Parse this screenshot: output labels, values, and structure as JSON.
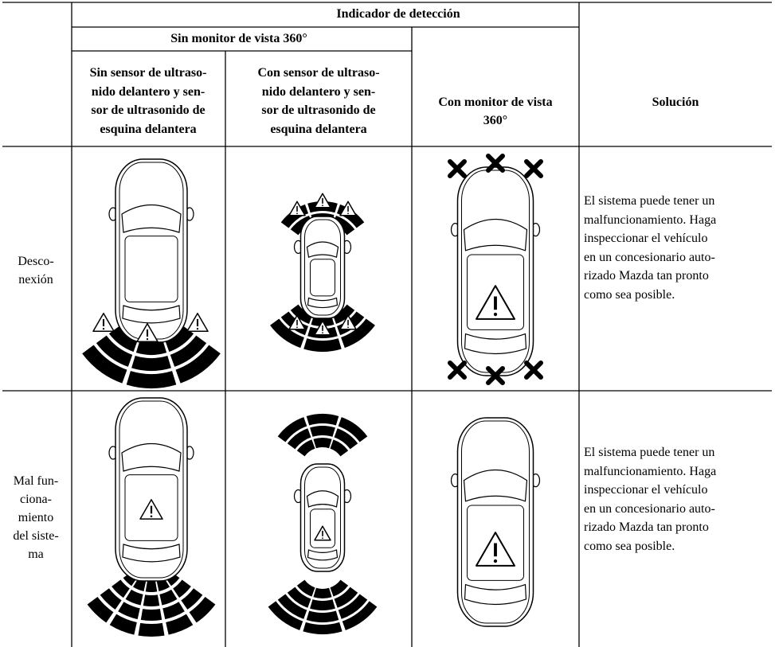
{
  "table": {
    "header": {
      "group": "Indicador de detección",
      "subgroup": "Sin monitor de vista 360°",
      "columns": [
        [
          "Sin sensor de ultraso-",
          "nido delantero y sen-",
          "sor de ultrasonido de",
          "esquina delantera"
        ],
        [
          "Con sensor de ultraso-",
          "nido delantero y sen-",
          "sor de ultrasonido de",
          "esquina delantera"
        ],
        [
          "Con monitor de vista",
          "360°"
        ],
        [
          "Solución"
        ]
      ]
    },
    "rows": [
      {
        "label": [
          "Desco-",
          "nexión"
        ],
        "solution": [
          "El sistema puede tener un",
          "malfuncionamiento. Haga",
          "inspeccionar el vehículo",
          "en un concesionario auto-",
          "rizado Mazda tan pronto",
          "como sea posible."
        ]
      },
      {
        "label": [
          "Mal fun-",
          "ciona-",
          "miento",
          "del siste-",
          "ma"
        ],
        "solution": [
          "El sistema puede tener un",
          "malfuncionamiento. Haga",
          "inspeccionar el vehículo",
          "en un concesionario auto-",
          "rizado Mazda tan pronto",
          "como sea posible."
        ]
      }
    ]
  }
}
